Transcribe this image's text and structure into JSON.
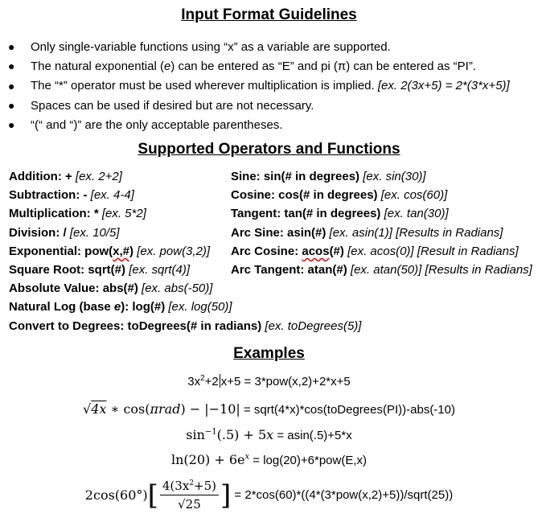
{
  "title": "Input Format Guidelines",
  "bullets": [
    {
      "text": "Only single-variable functions using “x” as a variable are supported.",
      "example": ""
    },
    {
      "text": "The natural exponential (",
      "e": "e",
      "text2": ") can be entered as “E” and pi (π) can be entered as “PI”.",
      "example": ""
    },
    {
      "text": "The “*” operator must be used wherever multiplication is implied. ",
      "example": "[ex. 2(3x+5) = 2*(3*x+5)]"
    },
    {
      "text": "Spaces can be used if desired but are not necessary.",
      "example": ""
    },
    {
      "text": "“(“ and “)” are the only acceptable parentheses.",
      "example": ""
    }
  ],
  "operators_title": "Supported Operators and Functions",
  "operators_left": [
    {
      "label": "Addition: + ",
      "example": "[ex. 2+2]"
    },
    {
      "label": "Subtraction: - ",
      "example": "[ex. 4-4]"
    },
    {
      "label": "Multiplication: * ",
      "example": "[ex. 5*2]"
    },
    {
      "label": "Division: / ",
      "example": "[ex. 10/5]"
    },
    {
      "label_a": "Exponential: pow(",
      "label_squig": "x,#",
      "label_b": ") ",
      "example": "[ex. pow(3,2)]"
    },
    {
      "label": "Square Root: sqrt(#) ",
      "example": "[ex. sqrt(4)]"
    },
    {
      "label": "Absolute Value: abs(#) ",
      "example": "[ex. abs(-50)]"
    },
    {
      "label_a": "Natural Log (base ",
      "label_e": "e",
      "label_b": "): log(#) ",
      "example": "[ex. log(50)]"
    },
    {
      "label": "Convert to Degrees: toDegrees(# in radians) ",
      "example": "[ex. toDegrees(5)]"
    }
  ],
  "operators_right": [
    {
      "label": "Sine: sin(# in degrees) ",
      "example": "[ex. sin(30)]"
    },
    {
      "label": "Cosine: cos(# in degrees) ",
      "example": "[ex. cos(60)]"
    },
    {
      "label": "Tangent: tan(# in degrees) ",
      "example": "[ex. tan(30)]"
    },
    {
      "label": "Arc Sine: asin(#) ",
      "example": "[ex. asin(1)] [Results in Radians]"
    },
    {
      "label_a": "Arc Cosine: ",
      "label_squig": "acos",
      "label_b": "(#) ",
      "example": "[ex. acos(0)] [Result in Radians]"
    },
    {
      "label": "Arc Tangent: atan(#) ",
      "example": "[ex. atan(50)] [Results in Radians]"
    }
  ],
  "examples_title": "Examples",
  "examples": {
    "e1_result": " = 3*pow(x,2)+2*x+5",
    "e2_result": " = sqrt(4*x)*cos(toDegrees(PI))-abs(-10)",
    "e3_result": " = asin(.5)+5*x",
    "e4_result": " = log(20)+6*pow(E,x)",
    "e5_result": " = 2*cos(60)*((4*(3*pow(x,2)+5))/sqrt(25))"
  }
}
